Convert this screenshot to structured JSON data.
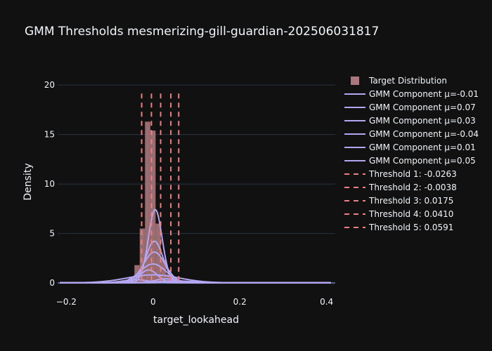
{
  "chart_data": {
    "type": "bar",
    "title": "GMM Thresholds mesmerizing-gill-guardian-202506031817",
    "xlabel": "target_lookahead",
    "ylabel": "Density",
    "xlim": [
      -0.22,
      0.42
    ],
    "ylim": [
      -1.2,
      21.5
    ],
    "x_ticks": [
      -0.2,
      0,
      0.2,
      0.4
    ],
    "x_tick_labels": [
      "−0.2",
      "0",
      "0.2",
      "0.4"
    ],
    "y_ticks": [
      0,
      5,
      10,
      15,
      20
    ],
    "y_tick_labels": [
      "0",
      "5",
      "10",
      "15",
      "20"
    ],
    "grid": true,
    "legend_position": "right",
    "colors": {
      "background": "#111111",
      "histogram": "#a8787c",
      "gmm": "#b4a6f0",
      "threshold": "#ef7f80",
      "grid": "#283442",
      "zeroline": "#506784"
    },
    "histogram": {
      "name": "Target Distribution",
      "bin_width": 0.0122,
      "bin_starts": [
        -0.2016,
        -0.1894,
        -0.1772,
        -0.165,
        -0.1528,
        -0.1406,
        -0.1284,
        -0.1162,
        -0.104,
        -0.0918,
        -0.0796,
        -0.0674,
        -0.0552,
        -0.043,
        -0.0308,
        -0.0186,
        -0.0064,
        0.0058,
        0.018,
        0.0302,
        0.0424,
        0.0546,
        0.0668,
        0.079,
        0.0912,
        0.1034,
        0.1156,
        0.1278,
        0.14,
        0.1522,
        0.1644,
        0.1766,
        0.1888
      ],
      "values": [
        0.02,
        0.02,
        0.03,
        0.03,
        0.04,
        0.04,
        0.05,
        0.06,
        0.08,
        0.1,
        0.15,
        0.3,
        0.6,
        1.8,
        5.5,
        16.3,
        15.4,
        6.0,
        2.3,
        0.9,
        0.45,
        0.25,
        0.15,
        0.1,
        0.07,
        0.05,
        0.04,
        0.03,
        0.02,
        0.02,
        0.02,
        0.01,
        0.01
      ]
    },
    "gmm_components": [
      {
        "name": "GMM Component μ=-0.01",
        "mean": -0.01,
        "peak": 1.3,
        "std": 0.02
      },
      {
        "name": "GMM Component μ=0.07",
        "mean": 0.07,
        "peak": 0.15,
        "std": 0.03
      },
      {
        "name": "GMM Component μ=0.03",
        "mean": 0.03,
        "peak": 0.4,
        "std": 0.025
      },
      {
        "name": "GMM Component μ=-0.04",
        "mean": -0.04,
        "peak": 0.3,
        "std": 0.03
      },
      {
        "name": "GMM Component μ=0.01",
        "mean": 0.005,
        "peak": 7.4,
        "std": 0.016
      },
      {
        "name": "GMM Component μ=0.05",
        "mean": 0.05,
        "peak": 0.2,
        "std": 0.035
      }
    ],
    "gmm_extra_curves": [
      {
        "mean": 0.003,
        "peak": 4.2,
        "std": 0.02
      },
      {
        "mean": 0.003,
        "peak": 3.1,
        "std": 0.025
      },
      {
        "mean": 0.0,
        "peak": 1.9,
        "std": 0.03
      },
      {
        "mean": 0.0,
        "peak": 0.8,
        "std": 0.06
      }
    ],
    "thresholds": [
      {
        "name": "Threshold 1: -0.0263",
        "x": -0.0263
      },
      {
        "name": "Threshold 2: -0.0038",
        "x": -0.0038
      },
      {
        "name": "Threshold 3: 0.0175",
        "x": 0.0175
      },
      {
        "name": "Threshold 4: 0.0410",
        "x": 0.041
      },
      {
        "name": "Threshold 5: 0.0591",
        "x": 0.0591
      }
    ],
    "threshold_y_range": [
      0.2,
      19.3
    ]
  }
}
